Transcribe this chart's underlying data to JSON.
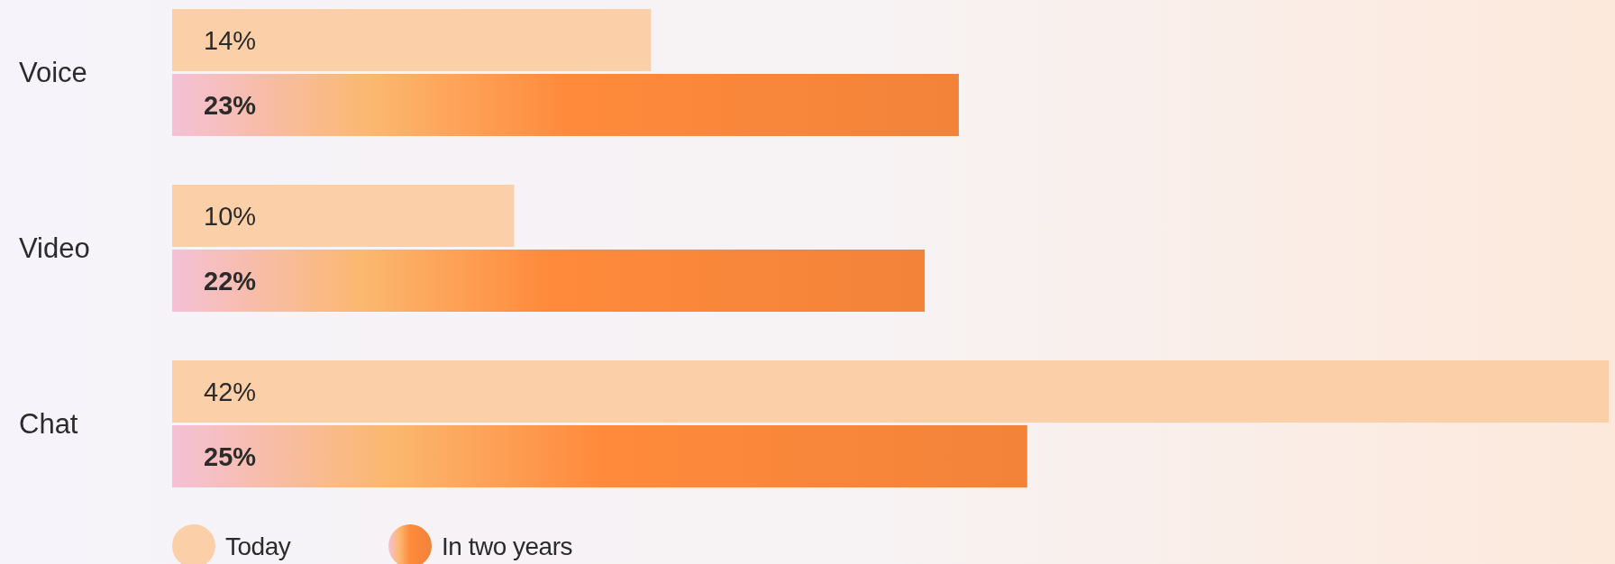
{
  "chart_data": {
    "type": "bar",
    "orientation": "horizontal",
    "categories": [
      "Voice",
      "Video",
      "Chat"
    ],
    "series": [
      {
        "name": "Today",
        "color": "#fbcfa8",
        "values": [
          14,
          10,
          42
        ],
        "value_labels": [
          "14%",
          "10%",
          "42%"
        ]
      },
      {
        "name": "In two years",
        "color": "#ff8a3c",
        "values": [
          23,
          22,
          25
        ],
        "value_labels": [
          "23%",
          "22%",
          "25%"
        ]
      }
    ],
    "legend": "bottom left"
  }
}
